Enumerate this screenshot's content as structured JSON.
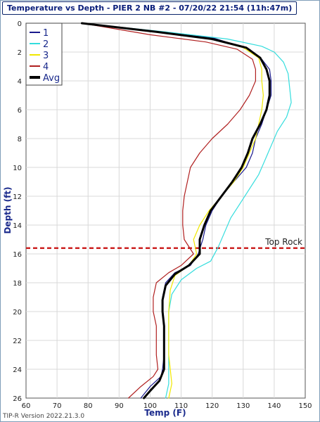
{
  "window": {
    "title": "Temperature vs Depth - PIER 2 NB #2 - 07/20/22 21:54 (11h:47m)"
  },
  "version_text": "TIP-R Version 2022.21.3.0",
  "chart_data": {
    "type": "line",
    "title": "Temperature vs Depth - PIER 2 NB #2 - 07/20/22 21:54 (11h:47m)",
    "xlabel": "Temp (F)",
    "ylabel": "Depth (ft)",
    "xlim": [
      60,
      150
    ],
    "ylim": [
      0,
      26
    ],
    "y_inverted": true,
    "x_ticks": [
      60,
      70,
      80,
      90,
      100,
      110,
      120,
      130,
      140,
      150
    ],
    "y_ticks": [
      0,
      2,
      4,
      6,
      8,
      10,
      12,
      14,
      16,
      18,
      20,
      22,
      24,
      26
    ],
    "grid": true,
    "legend_position": "top-left",
    "reference_line": {
      "label": "Top Rock",
      "depth": 15.6,
      "color": "#cc2222"
    },
    "series": [
      {
        "name": "1",
        "color": "#1a1a8c",
        "width": 1.2,
        "points": [
          [
            78,
            0
          ],
          [
            100,
            0.5
          ],
          [
            120,
            1
          ],
          [
            132,
            1.8
          ],
          [
            136,
            2.5
          ],
          [
            138.5,
            3.2
          ],
          [
            139,
            4
          ],
          [
            139,
            5
          ],
          [
            137.5,
            6
          ],
          [
            136,
            7
          ],
          [
            134,
            8
          ],
          [
            133,
            9
          ],
          [
            131,
            10
          ],
          [
            127,
            11
          ],
          [
            123,
            12
          ],
          [
            120,
            13
          ],
          [
            118,
            14
          ],
          [
            117,
            15
          ],
          [
            115.5,
            16
          ],
          [
            113,
            16.8
          ],
          [
            108,
            17.3
          ],
          [
            105,
            18
          ],
          [
            104,
            19
          ],
          [
            104,
            20
          ],
          [
            104.5,
            21
          ],
          [
            104.5,
            22
          ],
          [
            104.5,
            23
          ],
          [
            104,
            24
          ],
          [
            103.5,
            24.5
          ],
          [
            100,
            25.2
          ],
          [
            97,
            26
          ]
        ]
      },
      {
        "name": "2",
        "color": "#33dddd",
        "width": 1.2,
        "points": [
          [
            78,
            0
          ],
          [
            105,
            0.6
          ],
          [
            125,
            1.1
          ],
          [
            136,
            1.6
          ],
          [
            140,
            2
          ],
          [
            143,
            2.7
          ],
          [
            144.5,
            3.5
          ],
          [
            145,
            4.5
          ],
          [
            145.5,
            5.5
          ],
          [
            144,
            6.5
          ],
          [
            141,
            7.5
          ],
          [
            139,
            8.5
          ],
          [
            137,
            9.5
          ],
          [
            135,
            10.5
          ],
          [
            132,
            11.5
          ],
          [
            129,
            12.5
          ],
          [
            126,
            13.5
          ],
          [
            124,
            14.5
          ],
          [
            122,
            15.5
          ],
          [
            119.5,
            16.5
          ],
          [
            115,
            17
          ],
          [
            110,
            17.8
          ],
          [
            107,
            18.8
          ],
          [
            106,
            20
          ],
          [
            106,
            21
          ],
          [
            106,
            22
          ],
          [
            106,
            23
          ],
          [
            106,
            24
          ],
          [
            106,
            25
          ],
          [
            105,
            26
          ]
        ]
      },
      {
        "name": "3",
        "color": "#f0e800",
        "width": 1.2,
        "points": [
          [
            78,
            0
          ],
          [
            102,
            0.6
          ],
          [
            120,
            1.1
          ],
          [
            130,
            1.7
          ],
          [
            135,
            2.4
          ],
          [
            136,
            3.2
          ],
          [
            136,
            4
          ],
          [
            136.5,
            5
          ],
          [
            136,
            6
          ],
          [
            135,
            7
          ],
          [
            134,
            8
          ],
          [
            132,
            9
          ],
          [
            130,
            10
          ],
          [
            127,
            11
          ],
          [
            123,
            12
          ],
          [
            119,
            13
          ],
          [
            116,
            14
          ],
          [
            114,
            15
          ],
          [
            115,
            16
          ],
          [
            112.5,
            16.8
          ],
          [
            108,
            17.5
          ],
          [
            106.5,
            18.5
          ],
          [
            106,
            20
          ],
          [
            106,
            21
          ],
          [
            106,
            22
          ],
          [
            106,
            23
          ],
          [
            106.5,
            24
          ],
          [
            107,
            25
          ],
          [
            106,
            26
          ]
        ]
      },
      {
        "name": "4",
        "color": "#b02020",
        "width": 1.2,
        "points": [
          [
            78,
            0
          ],
          [
            100,
            0.8
          ],
          [
            118,
            1.3
          ],
          [
            128,
            1.8
          ],
          [
            133,
            2.5
          ],
          [
            134,
            3.2
          ],
          [
            134,
            4
          ],
          [
            132,
            5
          ],
          [
            129,
            6
          ],
          [
            125,
            7
          ],
          [
            120,
            8
          ],
          [
            116,
            9
          ],
          [
            113,
            10
          ],
          [
            112,
            11
          ],
          [
            111,
            12
          ],
          [
            110.5,
            13
          ],
          [
            110.5,
            14
          ],
          [
            111,
            15
          ],
          [
            114,
            16
          ],
          [
            110,
            16.8
          ],
          [
            106,
            17.3
          ],
          [
            102,
            18
          ],
          [
            101,
            19
          ],
          [
            101,
            20
          ],
          [
            102,
            21
          ],
          [
            102,
            22
          ],
          [
            102,
            23
          ],
          [
            102.5,
            24
          ],
          [
            101,
            24.5
          ],
          [
            97,
            25.2
          ],
          [
            93,
            26
          ]
        ]
      },
      {
        "name": "Avg",
        "color": "#000000",
        "width": 3,
        "points": [
          [
            78,
            0
          ],
          [
            102,
            0.6
          ],
          [
            120,
            1.1
          ],
          [
            131,
            1.7
          ],
          [
            135.5,
            2.4
          ],
          [
            137.5,
            3.2
          ],
          [
            138.5,
            4
          ],
          [
            138.5,
            5
          ],
          [
            137.5,
            6
          ],
          [
            135.5,
            7
          ],
          [
            133,
            8
          ],
          [
            131.5,
            9
          ],
          [
            129.5,
            10
          ],
          [
            126.5,
            11
          ],
          [
            123,
            12
          ],
          [
            119.5,
            13
          ],
          [
            117.5,
            14
          ],
          [
            116,
            15
          ],
          [
            116,
            16
          ],
          [
            112.5,
            16.8
          ],
          [
            108,
            17.4
          ],
          [
            105,
            18.2
          ],
          [
            104,
            19.2
          ],
          [
            104,
            20
          ],
          [
            104.5,
            21
          ],
          [
            104.5,
            22
          ],
          [
            104.5,
            23
          ],
          [
            104.5,
            24
          ],
          [
            103,
            24.8
          ],
          [
            100,
            25.5
          ],
          [
            98,
            26
          ]
        ]
      }
    ]
  }
}
